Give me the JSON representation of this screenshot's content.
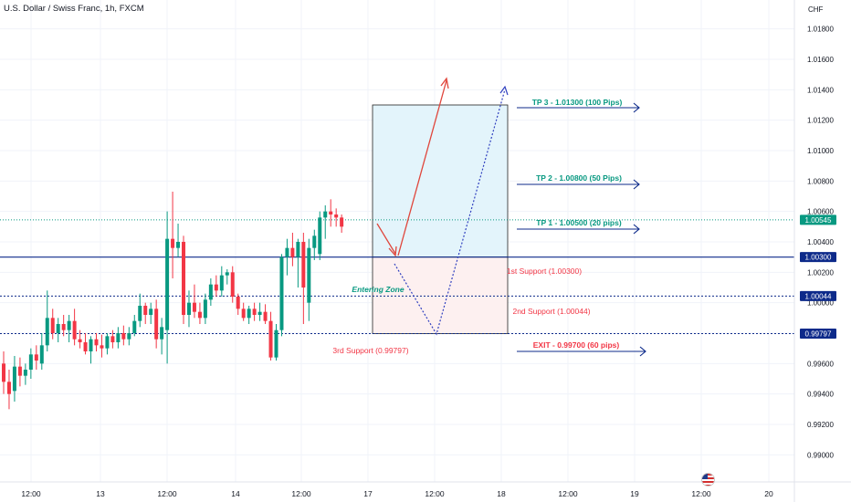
{
  "header": {
    "title": "U.S. Dollar / Swiss Franc, 1h, FXCM"
  },
  "axis": {
    "currency": "CHF",
    "price_ticks": [
      "1.01800",
      "1.01600",
      "1.01400",
      "1.01200",
      "1.01000",
      "1.00800",
      "1.00600",
      "1.00400",
      "1.00200",
      "1.00000",
      "0.99800",
      "0.99600",
      "0.99400",
      "0.99200",
      "0.99000"
    ],
    "time_ticks": [
      "12:00",
      "13",
      "12:00",
      "14",
      "12:00",
      "17",
      "12:00",
      "18",
      "12:00",
      "19",
      "12:00",
      "20"
    ]
  },
  "price_tags": [
    {
      "label": "1.00545",
      "value": 1.00545,
      "bg": "#089981"
    },
    {
      "label": "1.00300",
      "value": 1.003,
      "bg": "#0d2a8a"
    },
    {
      "label": "1.00044",
      "value": 1.00044,
      "bg": "#0d2a8a"
    },
    {
      "label": "0.99797",
      "value": 0.99797,
      "bg": "#0d2a8a"
    }
  ],
  "levels": [
    {
      "name": "last-price",
      "value": 1.00545,
      "style": "dotted",
      "color": "#089981"
    },
    {
      "name": "support-1",
      "value": 1.003,
      "style": "solid",
      "color": "#0d2a8a"
    },
    {
      "name": "support-2",
      "value": 1.00044,
      "style": "dotted",
      "color": "#0d2a8a"
    },
    {
      "name": "support-3",
      "value": 0.99797,
      "style": "dotted",
      "color": "#0d2a8a"
    }
  ],
  "annotations": {
    "tp3": "TP 3 - 1.01300 (100 Pips)",
    "tp2": "TP 2 - 1.00800 (50 Pips)",
    "tp1": "TP 1 - 1.00500 (20 pips)",
    "support1": "1st Support (1.00300)",
    "support2": "2nd Support (1.00044)",
    "support3": "3rd Support (0.99797)",
    "entering": "Entering Zone",
    "exit": "EXIT - 0.99700 (60 pips)"
  },
  "colors": {
    "bull": "#089981",
    "bear": "#f23645",
    "target_text": "#089981",
    "support_text": "#f23645",
    "arrow_blue": "#0d2a8a",
    "profit_zone": "#e3f4fb",
    "loss_zone": "#fdf0f0"
  },
  "chart_data": {
    "type": "candlestick",
    "title": "U.S. Dollar / Swiss Franc, 1h, FXCM",
    "ylabel": "CHF",
    "ylim": [
      0.9884,
      1.0196
    ],
    "long_position": {
      "entry": 1.003,
      "target": 1.013,
      "stop": 0.99797
    },
    "candles": [
      {
        "o": 0.996,
        "h": 0.9968,
        "l": 0.994,
        "c": 0.9948
      },
      {
        "o": 0.9948,
        "h": 0.9956,
        "l": 0.993,
        "c": 0.994
      },
      {
        "o": 0.9942,
        "h": 0.9965,
        "l": 0.9935,
        "c": 0.9958
      },
      {
        "o": 0.9958,
        "h": 0.9964,
        "l": 0.9945,
        "c": 0.9952
      },
      {
        "o": 0.9952,
        "h": 0.996,
        "l": 0.9946,
        "c": 0.9956
      },
      {
        "o": 0.9956,
        "h": 0.997,
        "l": 0.995,
        "c": 0.9966
      },
      {
        "o": 0.9966,
        "h": 0.9972,
        "l": 0.9956,
        "c": 0.9962
      },
      {
        "o": 0.996,
        "h": 0.998,
        "l": 0.9956,
        "c": 0.9972
      },
      {
        "o": 0.9972,
        "h": 1.0008,
        "l": 0.9968,
        "c": 0.999
      },
      {
        "o": 0.999,
        "h": 0.9996,
        "l": 0.9976,
        "c": 0.998
      },
      {
        "o": 0.998,
        "h": 0.999,
        "l": 0.9974,
        "c": 0.9986
      },
      {
        "o": 0.9986,
        "h": 0.9992,
        "l": 0.9978,
        "c": 0.9982
      },
      {
        "o": 0.9982,
        "h": 0.9992,
        "l": 0.9974,
        "c": 0.9988
      },
      {
        "o": 0.9988,
        "h": 0.9996,
        "l": 0.9972,
        "c": 0.9976
      },
      {
        "o": 0.9976,
        "h": 0.9982,
        "l": 0.997,
        "c": 0.9974
      },
      {
        "o": 0.9974,
        "h": 0.998,
        "l": 0.9966,
        "c": 0.9968
      },
      {
        "o": 0.9968,
        "h": 0.9978,
        "l": 0.996,
        "c": 0.9976
      },
      {
        "o": 0.9976,
        "h": 0.998,
        "l": 0.9968,
        "c": 0.9972
      },
      {
        "o": 0.9972,
        "h": 0.9979,
        "l": 0.9964,
        "c": 0.997
      },
      {
        "o": 0.997,
        "h": 0.998,
        "l": 0.9966,
        "c": 0.9978
      },
      {
        "o": 0.9978,
        "h": 0.9982,
        "l": 0.997,
        "c": 0.9974
      },
      {
        "o": 0.9974,
        "h": 0.9984,
        "l": 0.997,
        "c": 0.998
      },
      {
        "o": 0.998,
        "h": 0.9985,
        "l": 0.9972,
        "c": 0.9976
      },
      {
        "o": 0.9976,
        "h": 0.9984,
        "l": 0.9972,
        "c": 0.998
      },
      {
        "o": 0.998,
        "h": 0.9992,
        "l": 0.9978,
        "c": 0.9988
      },
      {
        "o": 0.9988,
        "h": 1.0006,
        "l": 0.9984,
        "c": 0.9998
      },
      {
        "o": 0.9998,
        "h": 1.0,
        "l": 0.9986,
        "c": 0.9992
      },
      {
        "o": 0.9992,
        "h": 1.0,
        "l": 0.9986,
        "c": 0.9996
      },
      {
        "o": 0.9996,
        "h": 1.0002,
        "l": 0.997,
        "c": 0.9976
      },
      {
        "o": 0.9976,
        "h": 0.999,
        "l": 0.9966,
        "c": 0.9984
      },
      {
        "o": 0.9982,
        "h": 1.006,
        "l": 0.996,
        "c": 1.0042
      },
      {
        "o": 1.0042,
        "h": 1.0073,
        "l": 1.0016,
        "c": 1.0036
      },
      {
        "o": 1.0036,
        "h": 1.0052,
        "l": 1.003,
        "c": 1.004
      },
      {
        "o": 1.004,
        "h": 1.0044,
        "l": 0.9986,
        "c": 0.9992
      },
      {
        "o": 0.9992,
        "h": 1.0008,
        "l": 0.9984,
        "c": 1.0
      },
      {
        "o": 1.0,
        "h": 1.0012,
        "l": 0.999,
        "c": 0.9994
      },
      {
        "o": 0.9994,
        "h": 1.0,
        "l": 0.9986,
        "c": 0.999
      },
      {
        "o": 0.999,
        "h": 1.0006,
        "l": 0.9986,
        "c": 1.0002
      },
      {
        "o": 1.0002,
        "h": 1.0016,
        "l": 0.9998,
        "c": 1.0012
      },
      {
        "o": 1.0012,
        "h": 1.0018,
        "l": 1.0004,
        "c": 1.0008
      },
      {
        "o": 1.0008,
        "h": 1.0024,
        "l": 1.0004,
        "c": 1.0018
      },
      {
        "o": 1.0018,
        "h": 1.0022,
        "l": 1.0012,
        "c": 1.002
      },
      {
        "o": 1.002,
        "h": 1.0024,
        "l": 1.0,
        "c": 1.0004
      },
      {
        "o": 1.0004,
        "h": 1.0006,
        "l": 0.9992,
        "c": 0.9996
      },
      {
        "o": 0.9996,
        "h": 1.0,
        "l": 0.9988,
        "c": 0.999
      },
      {
        "o": 0.999,
        "h": 0.9998,
        "l": 0.9986,
        "c": 0.9996
      },
      {
        "o": 0.9996,
        "h": 1.0,
        "l": 0.9988,
        "c": 0.9992
      },
      {
        "o": 0.9992,
        "h": 1.0,
        "l": 0.9988,
        "c": 0.9994
      },
      {
        "o": 0.9994,
        "h": 0.9999,
        "l": 0.9986,
        "c": 0.9988
      },
      {
        "o": 0.9988,
        "h": 0.9994,
        "l": 0.9962,
        "c": 0.9964
      },
      {
        "o": 0.9964,
        "h": 0.9986,
        "l": 0.9962,
        "c": 0.9982
      },
      {
        "o": 0.9982,
        "h": 1.0032,
        "l": 0.9978,
        "c": 1.003
      },
      {
        "o": 1.003,
        "h": 1.0042,
        "l": 1.0018,
        "c": 1.0036
      },
      {
        "o": 1.0036,
        "h": 1.0046,
        "l": 1.0024,
        "c": 1.003
      },
      {
        "o": 1.003,
        "h": 1.0042,
        "l": 1.001,
        "c": 1.004
      },
      {
        "o": 1.004,
        "h": 1.0046,
        "l": 0.9986,
        "c": 1.001
      },
      {
        "o": 1.0,
        "h": 1.0042,
        "l": 0.9988,
        "c": 1.0036
      },
      {
        "o": 1.0036,
        "h": 1.0048,
        "l": 1.0028,
        "c": 1.0044
      },
      {
        "o": 1.0032,
        "h": 1.006,
        "l": 1.0028,
        "c": 1.0056
      },
      {
        "o": 1.0056,
        "h": 1.0064,
        "l": 1.0042,
        "c": 1.006
      },
      {
        "o": 1.006,
        "h": 1.0068,
        "l": 1.005,
        "c": 1.0058
      },
      {
        "o": 1.0058,
        "h": 1.0062,
        "l": 1.005,
        "c": 1.0056
      },
      {
        "o": 1.0056,
        "h": 1.0058,
        "l": 1.0046,
        "c": 1.005
      }
    ]
  }
}
